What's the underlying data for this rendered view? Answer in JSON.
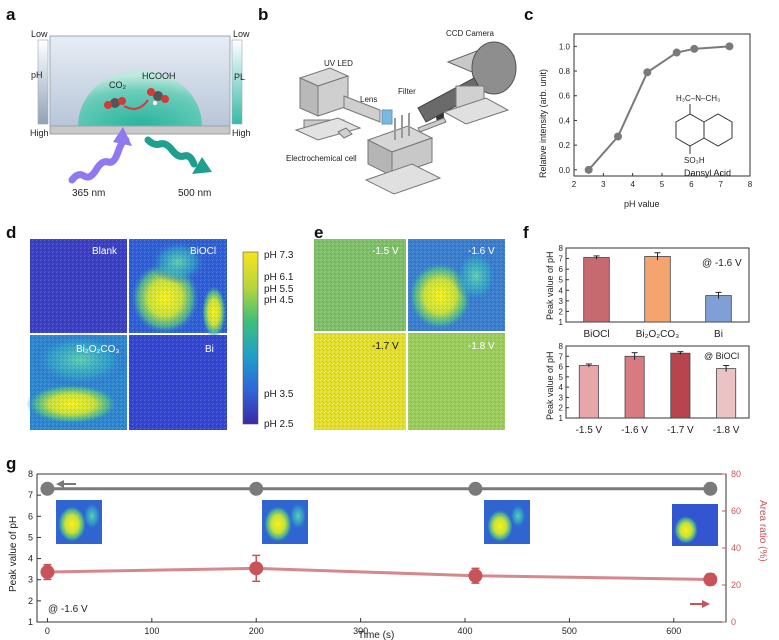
{
  "colors": {
    "accent_red": "#c8545a",
    "gray_line": "#7a7a7a",
    "green_wave": "#1f9f90",
    "violet_wave": "#8f78f0"
  },
  "panel_labels": {
    "a": "a",
    "b": "b",
    "c": "c",
    "d": "d",
    "e": "e",
    "f": "f",
    "g": "g"
  },
  "panel_a": {
    "left_low": "Low",
    "left_high": "High",
    "left_label": "pH",
    "right_low": "Low",
    "right_high": "High",
    "right_label": "PL",
    "co2": "CO₂",
    "hcooh": "HCOOH",
    "excitation": "365 nm",
    "emission": "500 nm"
  },
  "panel_b": {
    "uv_led": "UV LED",
    "lens": "Lens",
    "filter": "Filter",
    "ccd_camera": "CCD Camera",
    "electrochemical_cell": "Electrochemical cell"
  },
  "panel_d": {
    "labels": [
      "Blank",
      "BiOCl",
      "Bi₂O₂CO₃",
      "Bi"
    ],
    "colorbar_ticks": [
      "pH 7.3",
      "pH 6.1",
      "pH 5.5",
      "pH 4.5",
      "pH 3.5",
      "pH 2.5"
    ]
  },
  "panel_e": {
    "labels": [
      "-1.5 V",
      "-1.6 V",
      "-1.7 V",
      "-1.8 V"
    ]
  },
  "chart_data": [
    {
      "id": "c",
      "type": "line",
      "xlabel": "pH value",
      "ylabel": "Relative intensity (arb. unit)",
      "xlim": [
        2,
        8
      ],
      "ylim": [
        -0.05,
        1.1
      ],
      "xticks": [
        "2",
        "3",
        "4",
        "5",
        "6",
        "7",
        "8"
      ],
      "yticks": [
        "0.0",
        "0.2",
        "0.4",
        "0.6",
        "0.8",
        "1.0"
      ],
      "x": [
        2.5,
        3.5,
        4.5,
        5.5,
        6.1,
        7.3
      ],
      "y": [
        0.0,
        0.27,
        0.79,
        0.95,
        0.98,
        1.0
      ],
      "annotation": "Dansyl Acid",
      "molecule_labels": {
        "nme2": "H₃C–N–CH₃",
        "so3h": "SO₃H"
      }
    },
    {
      "id": "f-top",
      "type": "bar",
      "ylabel": "Peak value of pH",
      "annotation": "@ -1.6 V",
      "categories": [
        "BiOCl",
        "Bi₂O₂CO₃",
        "Bi"
      ],
      "values": [
        7.1,
        7.2,
        3.5
      ],
      "errors": [
        0.15,
        0.35,
        0.3
      ],
      "colors": [
        "#c66a70",
        "#f6a46f",
        "#7f9fd6"
      ],
      "ylim": [
        1,
        8
      ],
      "yticks": [
        "1",
        "2",
        "3",
        "4",
        "5",
        "6",
        "7",
        "8"
      ]
    },
    {
      "id": "f-bottom",
      "type": "bar",
      "ylabel": "Peak value of pH",
      "annotation": "@ BiOCl",
      "categories": [
        "-1.5 V",
        "-1.6 V",
        "-1.7 V",
        "-1.8 V"
      ],
      "values": [
        6.1,
        7.0,
        7.3,
        5.8
      ],
      "errors": [
        0.15,
        0.35,
        0.15,
        0.3
      ],
      "colors": [
        "#e8a6aa",
        "#d77b81",
        "#b8454d",
        "#ecc3c5"
      ],
      "ylim": [
        1,
        8
      ],
      "yticks": [
        "1",
        "2",
        "3",
        "4",
        "5",
        "6",
        "7",
        "8"
      ]
    },
    {
      "id": "g",
      "type": "line",
      "xlabel": "Time (s)",
      "ylabel_left": "Peak value of pH",
      "ylabel_right": "Area ratio (%)",
      "annotation": "@ -1.6 V",
      "xlim": [
        -10,
        650
      ],
      "xticks": [
        "0",
        "100",
        "200",
        "300",
        "400",
        "500",
        "600"
      ],
      "ylim_left": [
        1,
        8
      ],
      "yticks_left": [
        "1",
        "2",
        "3",
        "4",
        "5",
        "6",
        "7",
        "8"
      ],
      "ylim_right": [
        0,
        80
      ],
      "yticks_right": [
        "0",
        "20",
        "40",
        "60",
        "80"
      ],
      "series": [
        {
          "name": "Peak value of pH",
          "axis": "left",
          "x": [
            0,
            200,
            410,
            635
          ],
          "y": [
            7.3,
            7.3,
            7.3,
            7.3
          ],
          "color": "#7a7a7a"
        },
        {
          "name": "Area ratio (%)",
          "axis": "right",
          "x": [
            0,
            200,
            410,
            635
          ],
          "y": [
            27,
            29,
            25,
            23
          ],
          "errors": [
            4,
            7,
            4,
            3
          ],
          "color": "#c8545a"
        }
      ]
    }
  ]
}
